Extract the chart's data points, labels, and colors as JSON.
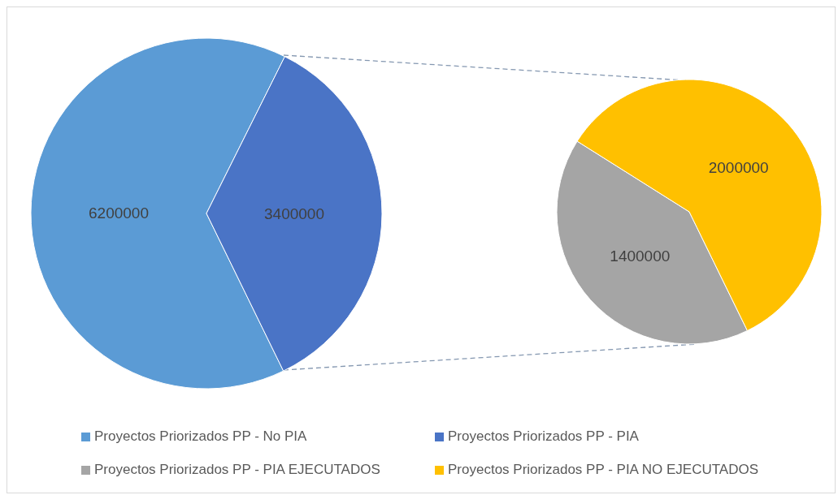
{
  "chart_data": [
    {
      "type": "pie",
      "categories": [
        "Proyectos Priorizados PP - No PIA",
        "Proyectos Priorizados PP - PIA"
      ],
      "values": [
        6200000,
        3400000
      ],
      "colors": [
        "#5b9bd5",
        "#4a74c6"
      ],
      "data_labels": true,
      "legend": "bottom"
    },
    {
      "type": "pie",
      "categories": [
        "Proyectos Priorizados PP - PIA EJECUTADOS",
        "Proyectos Priorizados PP - PIA NO EJECUTADOS"
      ],
      "values": [
        1400000,
        2000000
      ],
      "colors": [
        "#a5a5a5",
        "#ffc000"
      ],
      "data_labels": true,
      "legend": "bottom"
    }
  ]
}
